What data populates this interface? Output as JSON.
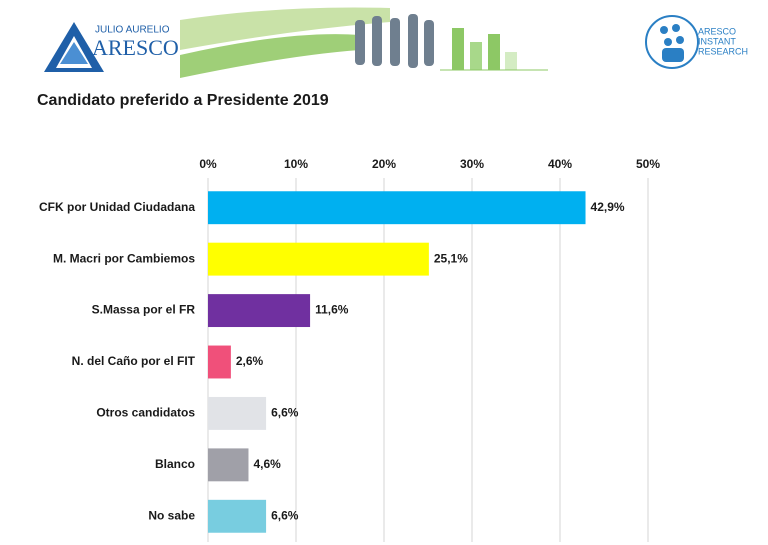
{
  "logos": {
    "left_small": "JULIO AURELIO",
    "left_big": "ARESCO",
    "right": [
      "ARESCO",
      "INSTANT",
      "RESEARCH"
    ]
  },
  "chart_data": {
    "type": "bar",
    "orientation": "horizontal",
    "title": "Candidato preferido a Presidente 2019",
    "categories": [
      "CFK por Unidad Ciudadana",
      "M. Macri por Cambiemos",
      "S.Massa por el FR",
      "N. del Caño por el FIT",
      "Otros candidatos",
      "Blanco",
      "No sabe"
    ],
    "values": [
      42.9,
      25.1,
      11.6,
      2.6,
      6.6,
      4.6,
      6.6
    ],
    "value_labels": [
      "42,9%",
      "25,1%",
      "11,6%",
      "2,6%",
      "6,6%",
      "4,6%",
      "6,6%"
    ],
    "colors": [
      "#00b0f0",
      "#ffff00",
      "#7030a0",
      "#f0507a",
      "#e1e3e7",
      "#a0a0a8",
      "#78cde0"
    ],
    "xlim": [
      0,
      50
    ],
    "xticks": [
      {
        "value": 0,
        "label": "0%"
      },
      {
        "value": 10,
        "label": "10%"
      },
      {
        "value": 20,
        "label": "20%"
      },
      {
        "value": 30,
        "label": "30%"
      },
      {
        "value": 40,
        "label": "40%"
      },
      {
        "value": 50,
        "label": "50%"
      }
    ],
    "grid": true
  }
}
